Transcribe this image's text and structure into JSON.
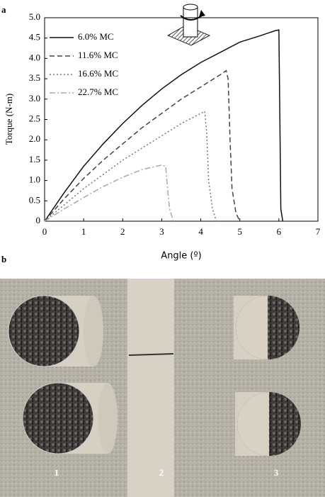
{
  "panel_labels": [
    "a",
    "b"
  ],
  "chart_data": {
    "type": "line",
    "xlabel": "Angle (º)",
    "ylabel": "Torque (N-m)",
    "xlim": [
      0,
      7
    ],
    "xticks": [
      0,
      1,
      2,
      3,
      4,
      5,
      6,
      7
    ],
    "ylim": [
      0,
      5
    ],
    "yticks": [
      0,
      0.5,
      {
        "value": 1,
        "label": "1.0"
      },
      1.5,
      {
        "value": 2,
        "label": "2.0"
      },
      2.5,
      {
        "value": 3,
        "label": "3.0"
      },
      3.5,
      {
        "value": 4,
        "label": "4.0"
      },
      4.5,
      {
        "value": 5,
        "label": "5.0"
      }
    ],
    "series": [
      {
        "name": "6.0% MC",
        "color": "#111111",
        "dash": "none",
        "x": [
          0,
          0.5,
          1,
          1.5,
          2,
          2.5,
          3,
          3.5,
          4,
          4.5,
          5,
          5.5,
          5.9,
          6.0,
          6.02,
          6.05,
          6.1
        ],
        "values": [
          0,
          0.7,
          1.35,
          1.9,
          2.4,
          2.85,
          3.25,
          3.6,
          3.9,
          4.15,
          4.4,
          4.55,
          4.68,
          4.7,
          3.0,
          0.3,
          0
        ]
      },
      {
        "name": "11.6% MC",
        "color": "#444444",
        "dash": "7 4",
        "x": [
          0,
          0.5,
          1,
          1.5,
          2,
          2.5,
          3,
          3.5,
          4,
          4.5,
          4.65,
          4.7,
          4.75,
          4.8,
          4.9,
          5.0
        ],
        "values": [
          0,
          0.55,
          1.05,
          1.5,
          1.9,
          2.3,
          2.65,
          3.0,
          3.3,
          3.6,
          3.7,
          3.5,
          2.0,
          0.8,
          0.2,
          0
        ]
      },
      {
        "name": "16.6% MC",
        "color": "#777777",
        "dash": "2 3",
        "x": [
          0,
          0.5,
          1,
          1.5,
          2,
          2.5,
          3,
          3.5,
          4,
          4.1,
          4.15,
          4.2,
          4.3,
          4.4
        ],
        "values": [
          0,
          0.4,
          0.8,
          1.15,
          1.5,
          1.8,
          2.1,
          2.4,
          2.65,
          2.7,
          2.2,
          1.0,
          0.3,
          0
        ]
      },
      {
        "name": "22.7% MC",
        "color": "#aaaaaa",
        "dash": "8 3 2 3",
        "x": [
          0,
          0.5,
          1,
          1.5,
          2,
          2.5,
          3,
          3.1,
          3.15,
          3.2,
          3.3
        ],
        "values": [
          0,
          0.3,
          0.58,
          0.85,
          1.08,
          1.27,
          1.38,
          1.35,
          0.8,
          0.3,
          0
        ]
      }
    ]
  },
  "photo": {
    "labels": [
      "1",
      "2",
      "3"
    ]
  }
}
